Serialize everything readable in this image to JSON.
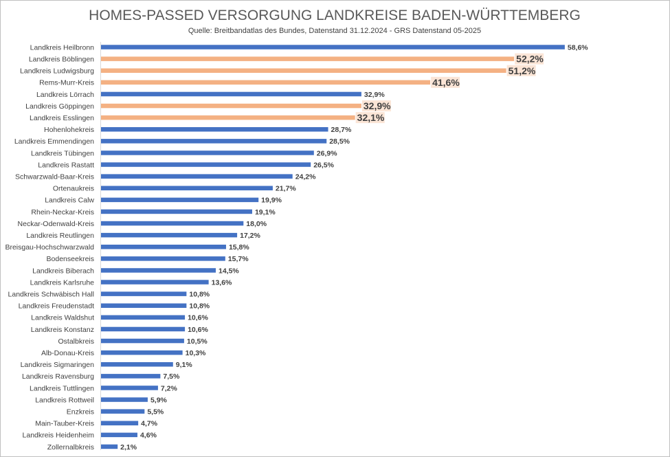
{
  "chart_data": {
    "type": "bar",
    "orientation": "horizontal",
    "title": "HOMES-PASSED VERSORGUNG LANDKREISE BADEN-WÜRTTEMBERG",
    "subtitle": "Quelle: Breitbandatlas des Bundes, Datenstand 31.12.2024   -   GRS Datenstand 05-2025",
    "xlim": [
      0,
      60
    ],
    "grid": false,
    "colors": {
      "default": "#4472c4",
      "highlight": "#f4b183",
      "highlight_label_bg": "#fbe5d6"
    },
    "categories": [
      "Landkreis Heilbronn",
      "Landkreis Böblingen",
      "Landkreis Ludwigsburg",
      "Rems-Murr-Kreis",
      "Landkreis Lörrach",
      "Landkreis Göppingen",
      "Landkreis Esslingen",
      "Hohenlohekreis",
      "Landkreis Emmendingen",
      "Landkreis Tübingen",
      "Landkreis Rastatt",
      "Schwarzwald-Baar-Kreis",
      "Ortenaukreis",
      "Landkreis Calw",
      "Rhein-Neckar-Kreis",
      "Neckar-Odenwald-Kreis",
      "Landkreis Reutlingen",
      "Breisgau-Hochschwarzwald",
      "Bodenseekreis",
      "Landkreis Biberach",
      "Landkreis Karlsruhe",
      "Landkreis Schwäbisch Hall",
      "Landkreis Freudenstadt",
      "Landkreis Waldshut",
      "Landkreis Konstanz",
      "Ostalbkreis",
      "Alb-Donau-Kreis",
      "Landkreis Sigmaringen",
      "Landkreis Ravensburg",
      "Landkreis Tuttlingen",
      "Landkreis Rottweil",
      "Enzkreis",
      "Main-Tauber-Kreis",
      "Landkreis Heidenheim",
      "Zollernalbkreis"
    ],
    "values": [
      58.6,
      52.2,
      51.2,
      41.6,
      32.9,
      32.9,
      32.1,
      28.7,
      28.5,
      26.9,
      26.5,
      24.2,
      21.7,
      19.9,
      19.1,
      18.0,
      17.2,
      15.8,
      15.7,
      14.5,
      13.6,
      10.8,
      10.8,
      10.6,
      10.6,
      10.5,
      10.3,
      9.1,
      7.5,
      7.2,
      5.9,
      5.5,
      4.7,
      4.6,
      2.1
    ],
    "labels": [
      "58,6%",
      "52,2%",
      "51,2%",
      "41,6%",
      "32,9%",
      "32,9%",
      "32,1%",
      "28,7%",
      "28,5%",
      "26,9%",
      "26,5%",
      "24,2%",
      "21,7%",
      "19,9%",
      "19,1%",
      "18,0%",
      "17,2%",
      "15,8%",
      "15,7%",
      "14,5%",
      "13,6%",
      "10,8%",
      "10,8%",
      "10,6%",
      "10,6%",
      "10,5%",
      "10,3%",
      "9,1%",
      "7,5%",
      "7,2%",
      "5,9%",
      "5,5%",
      "4,7%",
      "4,6%",
      "2,1%"
    ],
    "highlighted": [
      false,
      true,
      true,
      true,
      false,
      true,
      true,
      false,
      false,
      false,
      false,
      false,
      false,
      false,
      false,
      false,
      false,
      false,
      false,
      false,
      false,
      false,
      false,
      false,
      false,
      false,
      false,
      false,
      false,
      false,
      false,
      false,
      false,
      false,
      false
    ]
  }
}
